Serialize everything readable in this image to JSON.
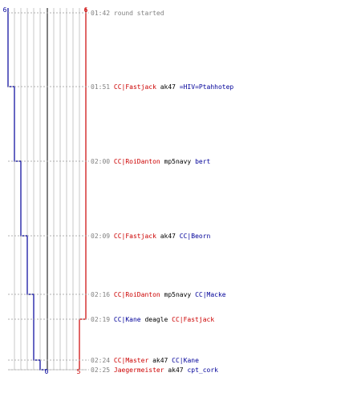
{
  "chart_data": {
    "type": "line",
    "title": "",
    "xlabel": "",
    "ylabel": "",
    "ylim": [
      0,
      6
    ],
    "grid": true,
    "colors": {
      "team_a": "#cc0000",
      "team_b": "#000099",
      "weapon": "#000000",
      "time": "#808080",
      "grid": "#c8c8c8",
      "center": "#808080"
    },
    "axis_labels": {
      "blue_top": "6",
      "red_top": "6",
      "blue_bottom": "0",
      "red_bottom": "5"
    },
    "events": [
      {
        "time": "01:42",
        "label": "round started",
        "type": "start"
      },
      {
        "time": "01:51",
        "killer": "CC|Fastjack",
        "killer_team": "red",
        "weapon": "ak47",
        "victim": "=HIV=Ptahhotep",
        "victim_team": "blue"
      },
      {
        "time": "02:00",
        "killer": "CC|RoiDanton",
        "killer_team": "red",
        "weapon": "mp5navy",
        "victim": "bert",
        "victim_team": "blue"
      },
      {
        "time": "02:09",
        "killer": "CC|Fastjack",
        "killer_team": "red",
        "weapon": "ak47",
        "victim": "CC|Beorn",
        "victim_team": "blue"
      },
      {
        "time": "02:16",
        "killer": "CC|RoiDanton",
        "killer_team": "red",
        "weapon": "mp5navy",
        "victim": "CC|Macke",
        "victim_team": "blue"
      },
      {
        "time": "02:19",
        "killer": "CC|Kane",
        "killer_team": "blue",
        "weapon": "deagle",
        "victim": "CC|Fastjack",
        "victim_team": "red"
      },
      {
        "time": "02:24",
        "killer": "CC|Master",
        "killer_team": "red",
        "weapon": "ak47",
        "victim": "CC|Kane",
        "victim_team": "blue"
      },
      {
        "time": "02:25",
        "killer": "Jaegermeister",
        "killer_team": "red",
        "weapon": "ak47",
        "victim": "cpt_cork",
        "victim_team": "blue"
      }
    ],
    "series": [
      {
        "team": "blue",
        "values": [
          6,
          5,
          4,
          3,
          2,
          2,
          1,
          0
        ]
      },
      {
        "team": "red",
        "values": [
          6,
          6,
          6,
          6,
          6,
          5,
          5,
          5
        ]
      }
    ]
  }
}
